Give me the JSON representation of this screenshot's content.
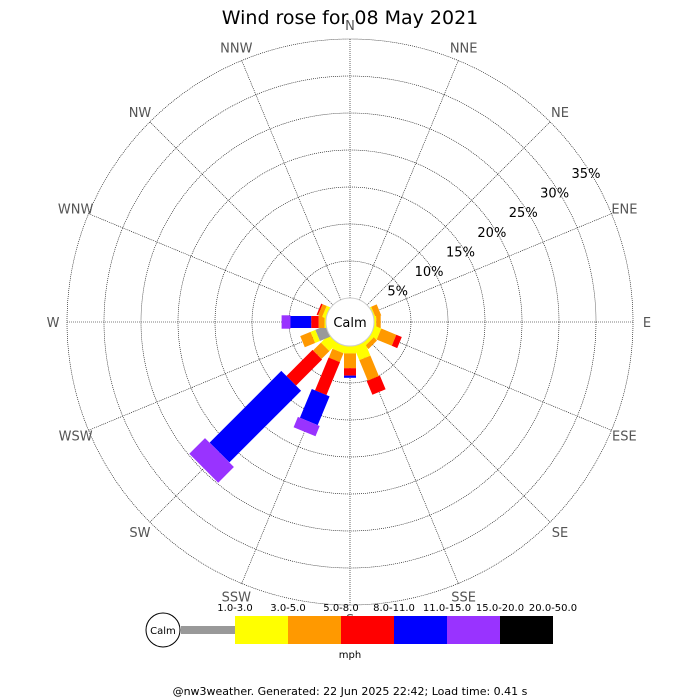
{
  "chart_data": {
    "type": "wind-rose",
    "title": "Wind rose for 08 May 2021",
    "center_label": "Calm",
    "directions": [
      "N",
      "NNE",
      "NE",
      "ENE",
      "E",
      "ESE",
      "SE",
      "SSE",
      "S",
      "SSW",
      "SW",
      "WSW",
      "W",
      "WNW",
      "NW",
      "NNW"
    ],
    "ring_labels": [
      "5%",
      "10%",
      "15%",
      "20%",
      "25%",
      "30%",
      "35%"
    ],
    "ring_values": [
      5,
      10,
      15,
      20,
      25,
      30,
      35
    ],
    "speed_bins": [
      {
        "label": "1.0-3.0",
        "color": "#999999"
      },
      {
        "label": "3.0-5.0",
        "color": "#ffff00"
      },
      {
        "label": "5.0-8.0",
        "color": "#ff9900"
      },
      {
        "label": "8.0-11.0",
        "color": "#ff0000"
      },
      {
        "label": "11.0-15.0",
        "color": "#0000ff"
      },
      {
        "label": "15.0-20.0",
        "color": "#9933ff"
      },
      {
        "label": "20.0-50.0",
        "color": "#000000"
      }
    ],
    "frequencies_percent": {
      "N": [
        0,
        0,
        0,
        0,
        0,
        0,
        0
      ],
      "NNE": [
        0,
        0,
        0,
        0,
        0,
        0,
        0
      ],
      "NE": [
        0,
        0,
        0,
        0,
        0,
        0,
        0
      ],
      "ENE": [
        0,
        0.2,
        0.8,
        0,
        0,
        0,
        0
      ],
      "E": [
        0,
        0.3,
        0.6,
        0,
        0,
        0,
        0
      ],
      "ESE": [
        0,
        1.0,
        2.2,
        0.8,
        0,
        0,
        0
      ],
      "SE": [
        0,
        0.5,
        0.6,
        0,
        0,
        0,
        0
      ],
      "SSE": [
        0,
        2.0,
        3.0,
        2.0,
        0,
        0,
        0
      ],
      "S": [
        0,
        1.0,
        2.0,
        1.0,
        0.3,
        0,
        0
      ],
      "SSW": [
        0,
        1.0,
        1.3,
        4.8,
        4.2,
        1.5,
        0
      ],
      "SW": [
        0,
        1.5,
        1.5,
        5.0,
        13.7,
        3.0,
        0
      ],
      "WSW": [
        1.5,
        0.7,
        1.5,
        0,
        0,
        0,
        0
      ],
      "W": [
        0,
        0.2,
        0.8,
        1.0,
        2.8,
        1.2,
        0
      ],
      "WNW": [
        0,
        0.5,
        0.6,
        0.2,
        0,
        0,
        0
      ],
      "NW": [
        0,
        0,
        0,
        0,
        0,
        0,
        0
      ],
      "NNW": [
        0,
        0,
        0,
        0,
        0,
        0,
        0
      ]
    },
    "legend_unit": "mph"
  },
  "footer": "@nw3weather. Generated: 22 Jun 2025 22:42; Load time: 0.41 s"
}
